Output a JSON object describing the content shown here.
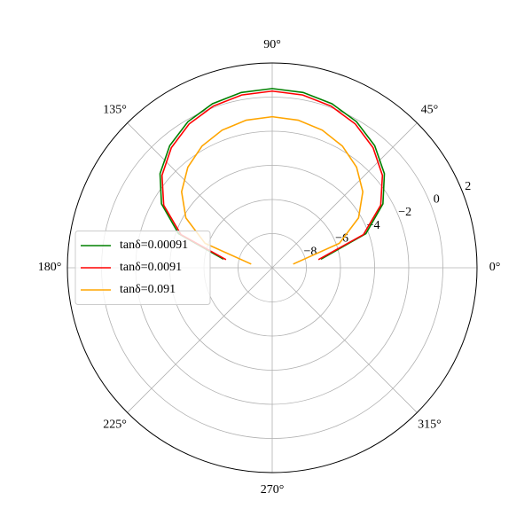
{
  "chart_data": {
    "type": "polar",
    "x": [
      10,
      20,
      30,
      40,
      50,
      60,
      70,
      80,
      90,
      100,
      110,
      120,
      130,
      140,
      150,
      160,
      170
    ],
    "xticks": [
      {
        "value": 0,
        "label": "0°"
      },
      {
        "value": 45,
        "label": "45°"
      },
      {
        "value": 90,
        "label": "90°"
      },
      {
        "value": 135,
        "label": "135°"
      },
      {
        "value": 180,
        "label": "180°"
      },
      {
        "value": 225,
        "label": "225°"
      },
      {
        "value": 270,
        "label": "270°"
      },
      {
        "value": 315,
        "label": "315°"
      }
    ],
    "ylim": [
      -10,
      2
    ],
    "yticks": [
      {
        "value": -8,
        "label": "−8"
      },
      {
        "value": -6,
        "label": "−6"
      },
      {
        "value": -4,
        "label": "−4"
      },
      {
        "value": -2,
        "label": "−2"
      },
      0,
      2
    ],
    "grid": true,
    "legend": "center left",
    "series": [
      {
        "name": "tanδ=0.00091",
        "color": "#008000",
        "values": [
          -7.1,
          -4.16,
          -2.51,
          -1.42,
          -0.66,
          -0.12,
          0.23,
          0.43,
          0.5,
          0.43,
          0.23,
          -0.12,
          -0.66,
          -1.42,
          -2.51,
          -4.16,
          -7.1
        ]
      },
      {
        "name": "tanδ=0.0091",
        "color": "#ff0000",
        "values": [
          -7.25,
          -4.31,
          -2.66,
          -1.57,
          -0.81,
          -0.27,
          0.08,
          0.28,
          0.35,
          0.28,
          0.08,
          -0.27,
          -0.81,
          -1.57,
          -2.66,
          -4.31,
          -7.25
        ]
      },
      {
        "name": "tanδ=0.091",
        "color": "#ffa500",
        "values": [
          -8.75,
          -5.81,
          -4.16,
          -3.07,
          -2.31,
          -1.77,
          -1.42,
          -1.22,
          -1.15,
          -1.22,
          -1.42,
          -1.77,
          -2.31,
          -3.07,
          -4.16,
          -5.81,
          -8.75
        ]
      }
    ]
  }
}
